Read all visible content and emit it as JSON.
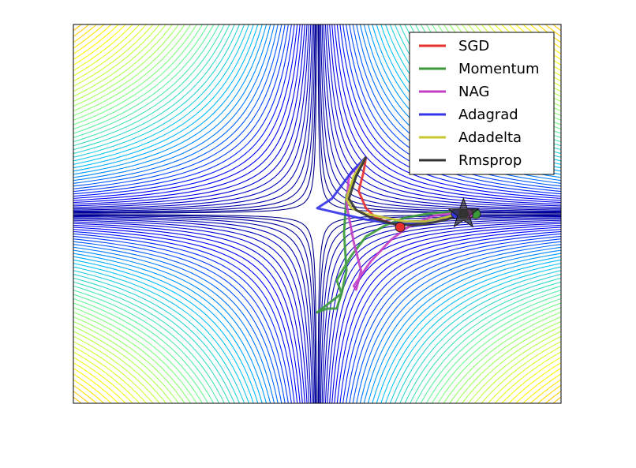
{
  "chart_data": {
    "type": "line",
    "title": "",
    "xlabel": "",
    "ylabel": "",
    "xlim": [
      -1.0,
      1.0
    ],
    "ylim": [
      -1.0,
      1.0
    ],
    "grid": false,
    "legend_position": "top-right",
    "background": "contour",
    "contour_colormap": [
      "#00007f",
      "#0000ff",
      "#00bfff",
      "#7fff7f",
      "#ffff00",
      "#ff7f00",
      "#b30000"
    ],
    "minimum_marker": {
      "shape": "star",
      "x": 0.6,
      "y": 0.0,
      "color": "#333333"
    },
    "series": [
      {
        "name": "SGD",
        "color": "#e8302e",
        "x": [
          0.2,
          0.19,
          0.17,
          0.2,
          0.24,
          0.28,
          0.31,
          0.33,
          0.34
        ],
        "y": [
          0.3,
          0.22,
          0.12,
          0.03,
          -0.02,
          -0.04,
          -0.05,
          -0.06,
          -0.07
        ]
      },
      {
        "name": "Momentum",
        "color": "#3a9a3a",
        "x": [
          0.2,
          0.12,
          0.11,
          0.12,
          0.1,
          0.08,
          0.04,
          0.0,
          0.1,
          0.08,
          0.14,
          0.2,
          0.28,
          0.36,
          0.45,
          0.53,
          0.6,
          0.65
        ],
        "y": [
          0.3,
          0.1,
          -0.1,
          -0.3,
          -0.42,
          -0.5,
          -0.5,
          -0.52,
          -0.42,
          -0.35,
          -0.22,
          -0.12,
          -0.06,
          -0.02,
          0.0,
          0.01,
          0.01,
          0.0
        ]
      },
      {
        "name": "NAG",
        "color": "#c43cc4",
        "x": [
          0.2,
          0.13,
          0.12,
          0.15,
          0.18,
          0.16,
          0.15,
          0.22,
          0.3,
          0.36,
          0.42,
          0.48,
          0.54,
          0.6,
          0.62
        ],
        "y": [
          0.3,
          0.2,
          0.05,
          -0.15,
          -0.3,
          -0.4,
          -0.38,
          -0.25,
          -0.14,
          -0.08,
          -0.04,
          -0.01,
          0.0,
          0.0,
          0.0
        ]
      },
      {
        "name": "Adagrad",
        "color": "#3434e8",
        "x": [
          0.2,
          0.14,
          0.06,
          0.0,
          0.1,
          0.2,
          0.3,
          0.4,
          0.48,
          0.54,
          0.57
        ],
        "y": [
          0.3,
          0.22,
          0.08,
          0.03,
          0.0,
          -0.03,
          -0.05,
          -0.05,
          -0.03,
          -0.01,
          0.0
        ]
      },
      {
        "name": "Adadelta",
        "color": "#c8c832",
        "x": [
          0.2,
          0.15,
          0.12,
          0.14,
          0.2,
          0.28,
          0.36,
          0.44,
          0.52,
          0.58,
          0.6
        ],
        "y": [
          0.3,
          0.2,
          0.08,
          0.03,
          0.0,
          -0.02,
          -0.04,
          -0.04,
          -0.02,
          0.0,
          0.0
        ]
      },
      {
        "name": "Rmsprop",
        "color": "#333333",
        "x": [
          0.2,
          0.16,
          0.13,
          0.16,
          0.22,
          0.3,
          0.38,
          0.46,
          0.53,
          0.58,
          0.6
        ],
        "y": [
          0.3,
          0.2,
          0.08,
          0.02,
          -0.02,
          -0.05,
          -0.06,
          -0.05,
          -0.03,
          -0.01,
          0.0
        ]
      }
    ]
  }
}
